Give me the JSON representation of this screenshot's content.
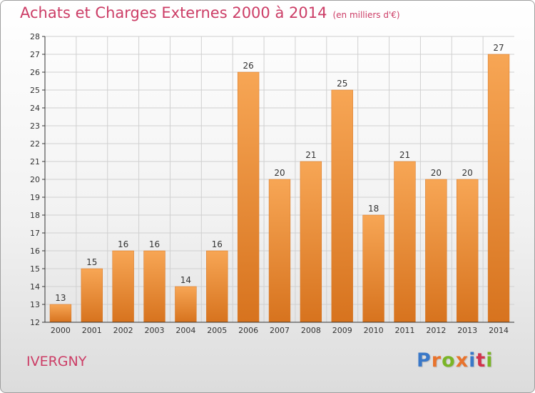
{
  "title": "Achats et Charges Externes 2000 à 2014",
  "subtitle": "(en milliers d'€)",
  "commune": "IVERGNY",
  "brand": {
    "text": "Proxiti",
    "letter_colors": [
      "#3a78c8",
      "#e8732c",
      "#7ab526",
      "#e8732c",
      "#3a78c8",
      "#d2334c",
      "#7ab526"
    ]
  },
  "colors": {
    "title": "#cc3d66",
    "bar_light": "#f7a655",
    "bar_dark": "#d7731e",
    "grid": "#d0d0d0",
    "axis": "#333333"
  },
  "chart_data": {
    "type": "bar",
    "categories": [
      "2000",
      "2001",
      "2002",
      "2003",
      "2004",
      "2005",
      "2006",
      "2007",
      "2008",
      "2009",
      "2010",
      "2011",
      "2012",
      "2013",
      "2014"
    ],
    "values": [
      13,
      15,
      16,
      16,
      14,
      16,
      26,
      20,
      21,
      25,
      18,
      21,
      20,
      20,
      27
    ],
    "ylim": [
      12,
      28
    ],
    "yticks": [
      12,
      13,
      14,
      15,
      16,
      17,
      18,
      19,
      20,
      21,
      22,
      23,
      24,
      25,
      26,
      27,
      28
    ],
    "grid": true,
    "xlabel": "",
    "ylabel": ""
  }
}
